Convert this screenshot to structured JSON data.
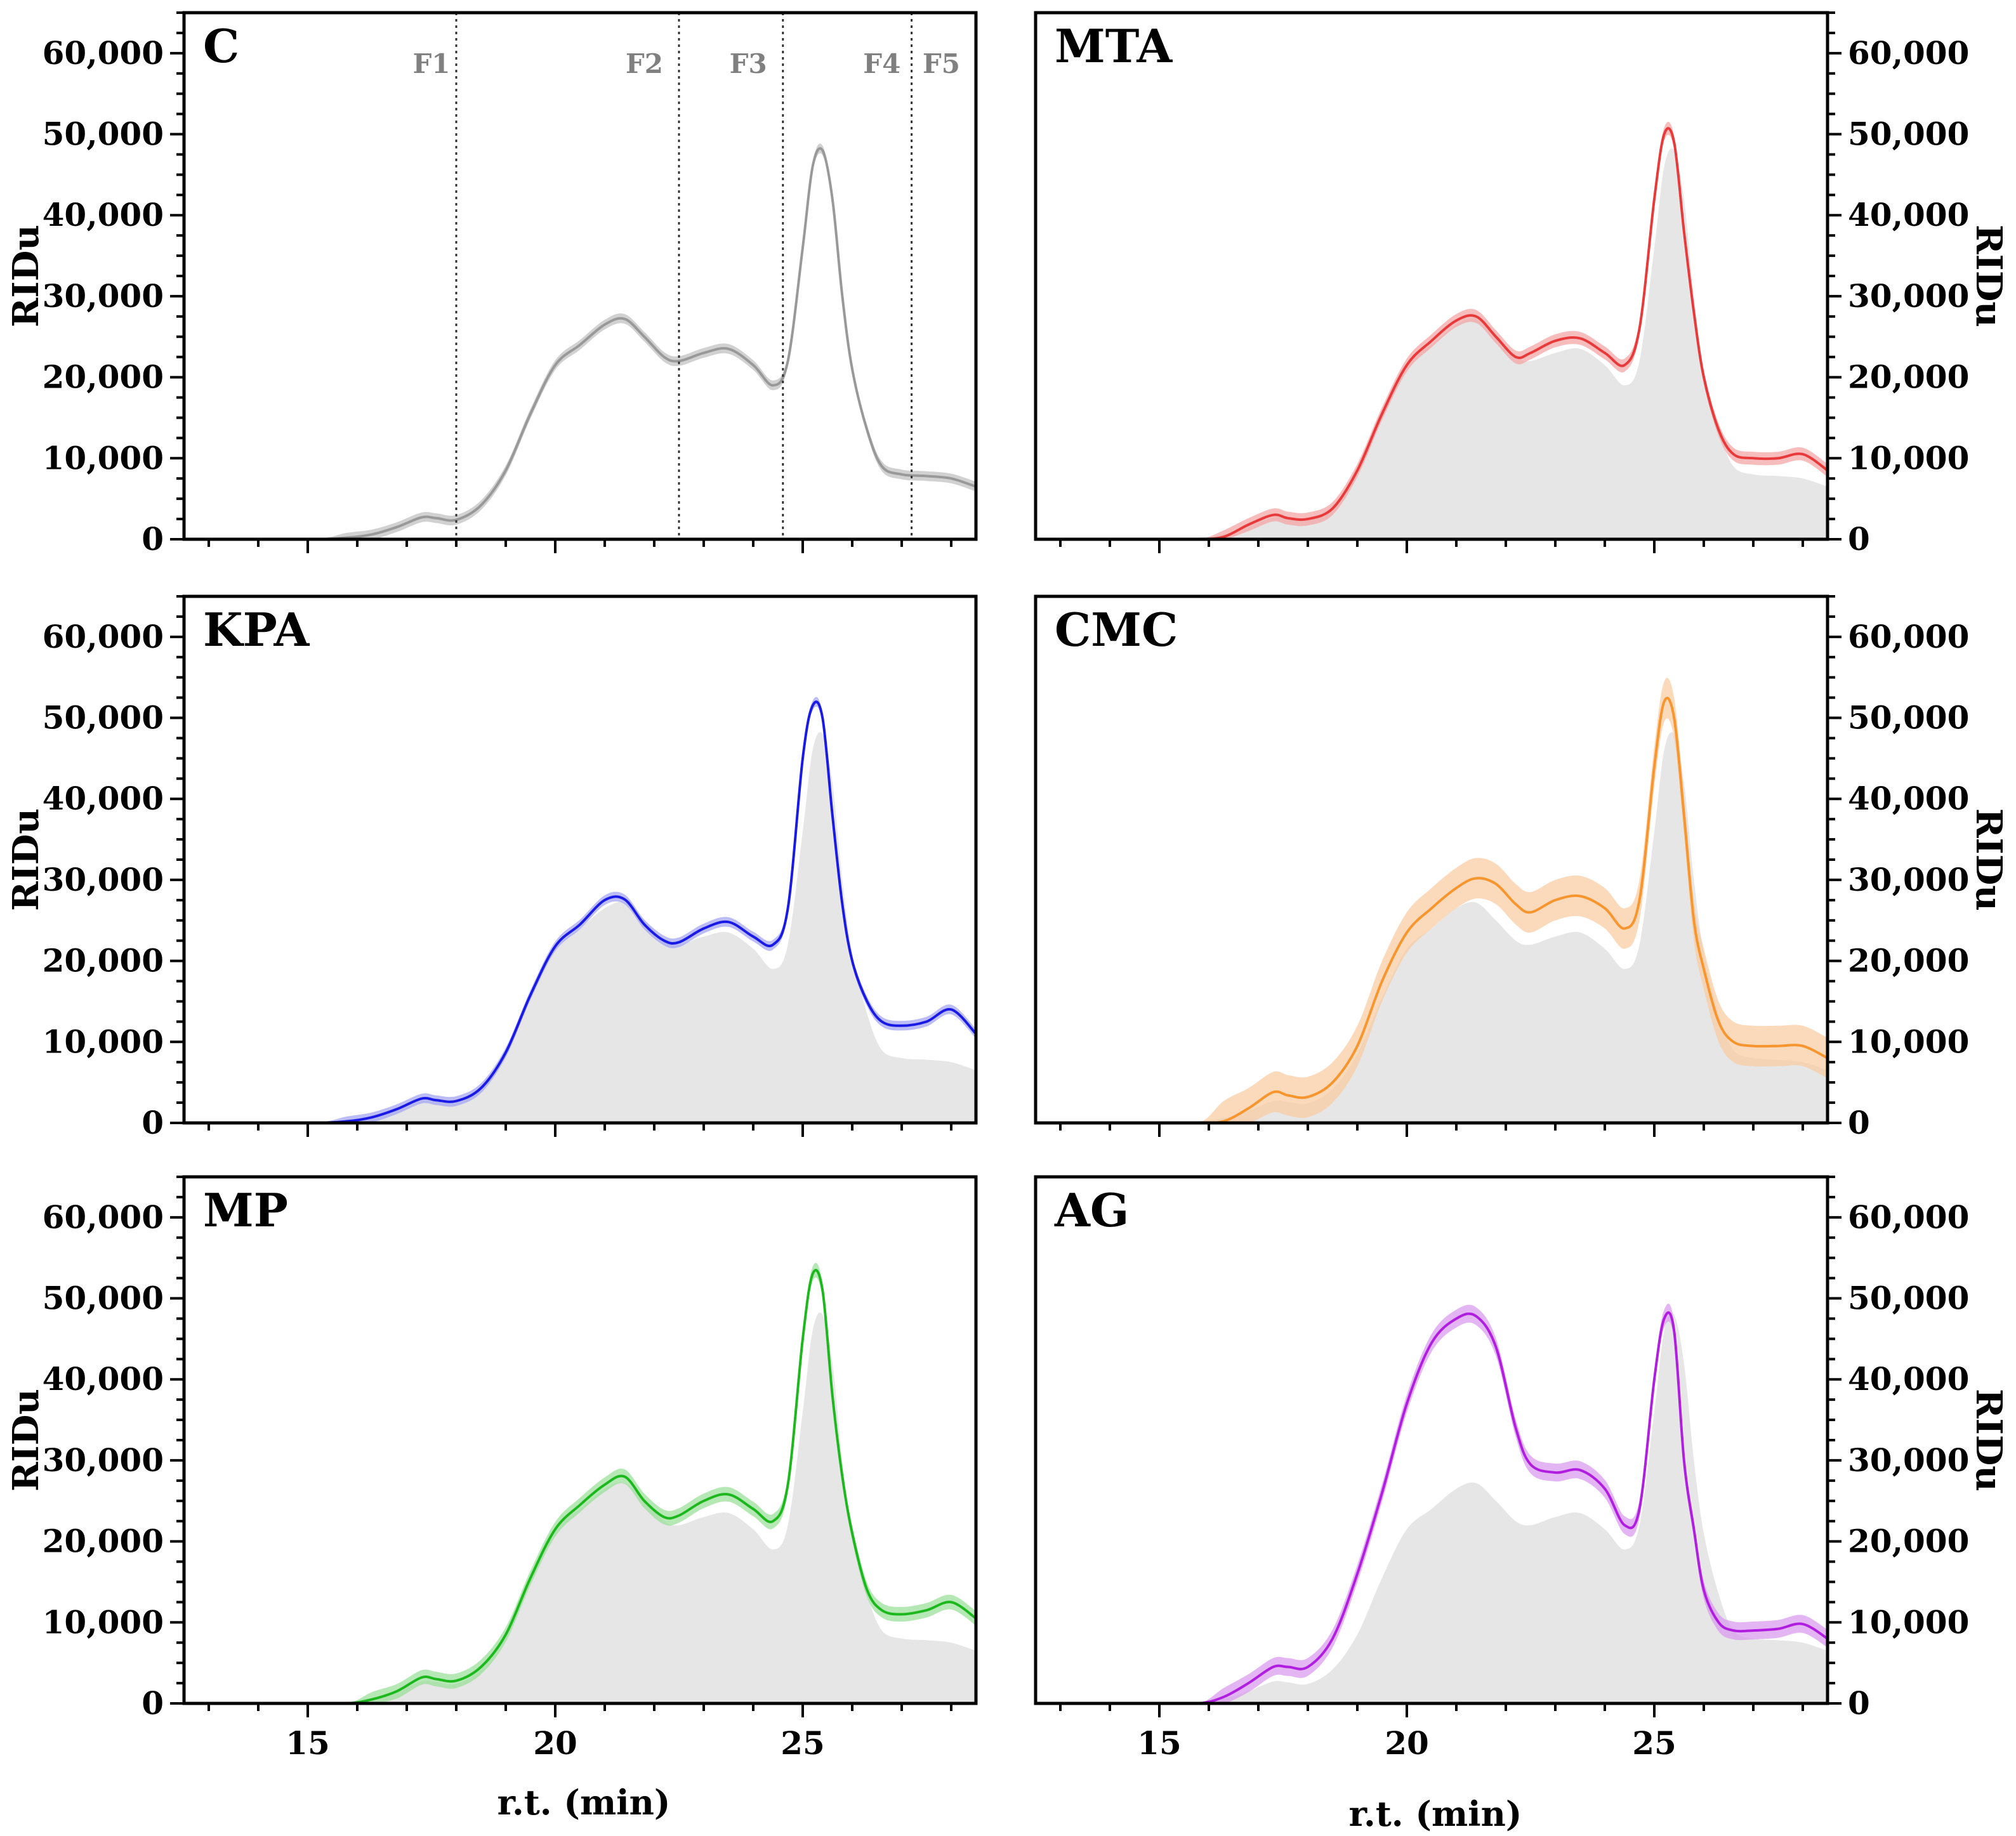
{
  "figure": {
    "y_axis_title": "RIDu",
    "x_axis_title": "r.t. (min)",
    "fraction_labels": [
      "F1",
      "F2",
      "F3",
      "F4",
      "F5"
    ]
  },
  "chart_data": {
    "type": "line",
    "xlim": [
      12.5,
      28.5
    ],
    "ylim": [
      0,
      65000
    ],
    "x_ticks": [
      15,
      20,
      25
    ],
    "y_ticks": [
      0,
      10000,
      20000,
      30000,
      40000,
      50000,
      60000
    ],
    "y_tick_labels": [
      "0",
      "10,000",
      "20,000",
      "30,000",
      "40,000",
      "50,000",
      "60,000"
    ],
    "x_tick_labels": [
      "15",
      "20",
      "25"
    ],
    "fraction_boundaries": [
      18.0,
      22.5,
      24.6,
      27.2
    ],
    "fraction_label_x": [
      17.5,
      21.8,
      23.9,
      26.6,
      27.8
    ],
    "x": [
      12.5,
      15.0,
      15.8,
      16.3,
      16.8,
      17.3,
      17.6,
      18.0,
      18.5,
      19.0,
      19.5,
      20.0,
      20.5,
      21.0,
      21.4,
      21.8,
      22.2,
      22.5,
      23.0,
      23.5,
      24.0,
      24.4,
      24.7,
      25.0,
      25.2,
      25.4,
      25.6,
      25.8,
      26.0,
      26.3,
      26.6,
      27.0,
      27.5,
      28.0,
      28.5
    ],
    "reference_series": "C",
    "panels": [
      {
        "label": "C",
        "color": "#999999",
        "band_color": "#bdbdbd",
        "y_axis_side": "left",
        "show_x_tick_labels": false,
        "show_fractions": true,
        "values": [
          0,
          0,
          200,
          600,
          1500,
          2700,
          2600,
          2400,
          4200,
          8500,
          15500,
          21500,
          24000,
          26500,
          27200,
          25000,
          22500,
          22000,
          23000,
          23500,
          21500,
          19000,
          22000,
          36000,
          46000,
          48000,
          42000,
          30000,
          21000,
          13500,
          9000,
          8000,
          7800,
          7500,
          6500
        ],
        "band": 600
      },
      {
        "label": "MTA",
        "color": "#e8393b",
        "band_color": "#f4a0a0",
        "y_axis_side": "right",
        "show_x_tick_labels": false,
        "show_fractions": false,
        "values": [
          0,
          0,
          0,
          300,
          1800,
          3000,
          2600,
          2500,
          3800,
          8500,
          15500,
          21500,
          24500,
          27000,
          27500,
          25000,
          22500,
          23000,
          24500,
          24800,
          23000,
          21500,
          26000,
          42000,
          50000,
          49000,
          38000,
          28000,
          20000,
          13500,
          10500,
          10000,
          10000,
          10500,
          8500
        ],
        "band": 800
      },
      {
        "label": "KPA",
        "color": "#1a1ae6",
        "band_color": "#9fa0f2",
        "y_axis_side": "left",
        "show_x_tick_labels": false,
        "show_fractions": false,
        "values": [
          0,
          0,
          200,
          700,
          1700,
          3000,
          2800,
          2700,
          4300,
          8700,
          15800,
          21800,
          24500,
          27500,
          27600,
          24500,
          22500,
          22300,
          24000,
          24800,
          23000,
          22000,
          26500,
          45000,
          51500,
          50000,
          38000,
          27000,
          20000,
          15000,
          12500,
          12000,
          12500,
          14000,
          11000
        ],
        "band": 600
      },
      {
        "label": "CMC",
        "color": "#f7952e",
        "band_color": "#f9caa0",
        "y_axis_side": "right",
        "show_x_tick_labels": false,
        "show_fractions": false,
        "values": [
          0,
          0,
          0,
          200,
          1800,
          3800,
          3400,
          3200,
          5000,
          9500,
          17500,
          23500,
          26500,
          29000,
          30200,
          29500,
          27000,
          26000,
          27500,
          28000,
          26500,
          24000,
          27500,
          44000,
          52000,
          50000,
          38000,
          25000,
          19000,
          12500,
          10000,
          9500,
          9500,
          9500,
          8000
        ],
        "band": 2500
      },
      {
        "label": "MP",
        "color": "#1db81d",
        "band_color": "#96de96",
        "y_axis_side": "left",
        "show_x_tick_labels": true,
        "show_fractions": false,
        "values": [
          0,
          0,
          0,
          500,
          1500,
          3200,
          3000,
          2800,
          4500,
          8500,
          15500,
          21500,
          24500,
          27000,
          28000,
          25000,
          23000,
          23200,
          25000,
          25800,
          24000,
          22500,
          27000,
          45000,
          53000,
          51000,
          38000,
          28000,
          21000,
          14000,
          11500,
          11000,
          11500,
          12500,
          10500
        ],
        "band": 900
      },
      {
        "label": "AG",
        "color": "#b01ee0",
        "band_color": "#d896ee",
        "y_axis_side": "right",
        "show_x_tick_labels": true,
        "show_fractions": false,
        "values": [
          0,
          0,
          0,
          800,
          2500,
          4500,
          4500,
          4500,
          8000,
          16000,
          26000,
          37000,
          44500,
          47500,
          47800,
          44000,
          34000,
          29500,
          28500,
          28800,
          26500,
          22000,
          24000,
          40000,
          47500,
          46000,
          30000,
          21500,
          14000,
          10000,
          9000,
          9000,
          9200,
          9800,
          8000
        ],
        "band": 1100
      }
    ]
  }
}
